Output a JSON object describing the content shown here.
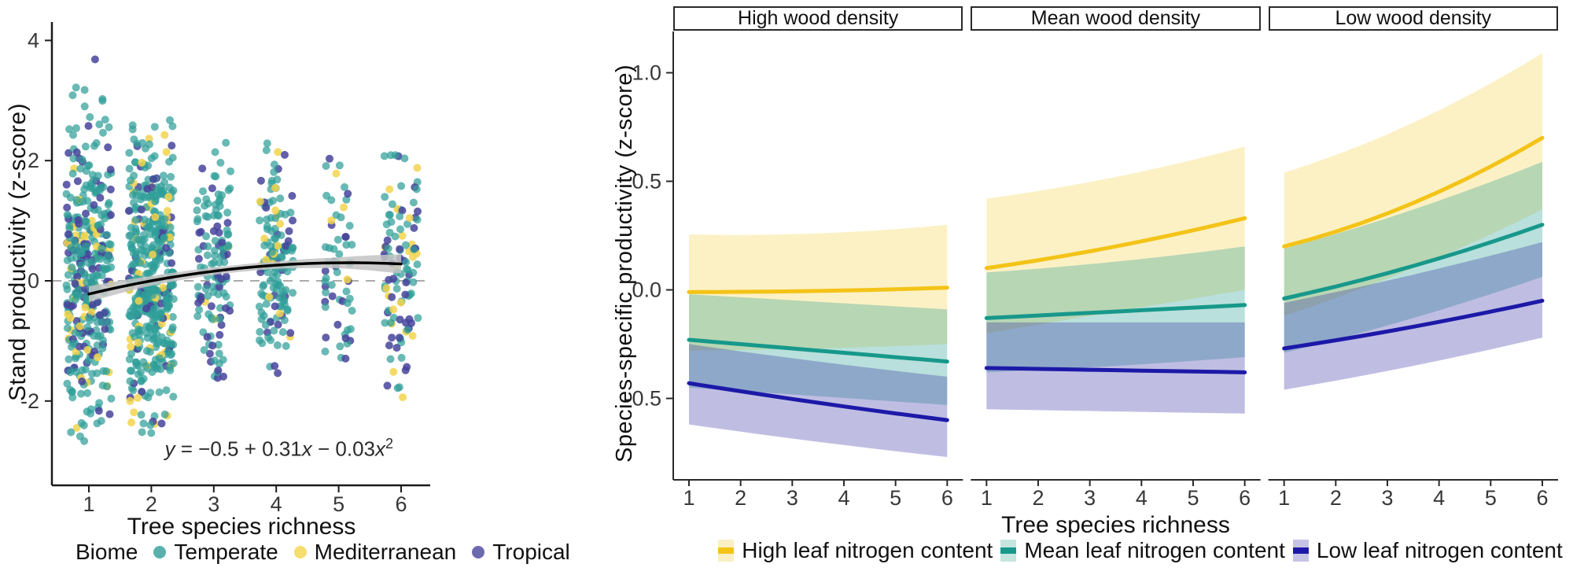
{
  "chart_data": [
    {
      "type": "scatter",
      "panel": "left",
      "xlabel": "Tree species richness",
      "ylabel": "Stand productivity (z-score)",
      "xticks": [
        1,
        2,
        3,
        4,
        5,
        6
      ],
      "ytick_values": [
        -2,
        0,
        2,
        4
      ],
      "ytick_labels": [
        "-2",
        "0",
        "2",
        "4"
      ],
      "xlim": [
        0.55,
        6.45
      ],
      "ylim": [
        -3.4,
        4.35
      ],
      "zero_line": {
        "y": 0,
        "color": "#ababab",
        "style": "dashed"
      },
      "equation": {
        "y": "y",
        "part1": " = −0.5 + 0.31",
        "x1": "x",
        "part2": " − 0.03",
        "x2": "x",
        "exponent": "2"
      },
      "fit_curve": {
        "coefficients": {
          "intercept": -0.5,
          "x": 0.31,
          "x2": -0.03
        },
        "x_range": [
          1,
          6
        ],
        "line_color": "#000000",
        "ci_color": "#c3c3c3",
        "ci_halfwidth_by_x": [
          0.13,
          0.08,
          0.06,
          0.06,
          0.09,
          0.16
        ]
      },
      "legend": {
        "title": "Biome",
        "items": [
          {
            "label": "Temperate",
            "color": "#2f9e98"
          },
          {
            "label": "Mediterranean",
            "color": "#f2d44c"
          },
          {
            "label": "Tropical",
            "color": "#47449b"
          }
        ]
      },
      "point_clusters": [
        {
          "x": 1,
          "n": 380,
          "y_mean": 0.1,
          "y_sd": 1.25,
          "y_min": -2.95,
          "y_max": 3.75,
          "x_jitter": 0.36,
          "biome_share": {
            "Temperate": 0.7,
            "Mediterranean": 0.13,
            "Tropical": 0.17
          }
        },
        {
          "x": 2,
          "n": 470,
          "y_mean": 0.05,
          "y_sd": 1.15,
          "y_min": -2.55,
          "y_max": 2.85,
          "x_jitter": 0.36,
          "biome_share": {
            "Temperate": 0.74,
            "Mediterranean": 0.12,
            "Tropical": 0.14
          }
        },
        {
          "x": 3,
          "n": 130,
          "y_mean": 0.2,
          "y_sd": 1.0,
          "y_min": -1.75,
          "y_max": 2.3,
          "x_jitter": 0.27,
          "biome_share": {
            "Temperate": 0.7,
            "Mediterranean": 0.04,
            "Tropical": 0.26
          }
        },
        {
          "x": 4,
          "n": 150,
          "y_mean": 0.35,
          "y_sd": 0.95,
          "y_min": -1.55,
          "y_max": 2.35,
          "x_jitter": 0.27,
          "biome_share": {
            "Temperate": 0.72,
            "Mediterranean": 0.1,
            "Tropical": 0.18
          }
        },
        {
          "x": 5,
          "n": 60,
          "y_mean": 0.4,
          "y_sd": 1.0,
          "y_min": -1.35,
          "y_max": 2.1,
          "x_jitter": 0.22,
          "biome_share": {
            "Temperate": 0.55,
            "Mediterranean": 0.07,
            "Tropical": 0.38
          }
        },
        {
          "x": 6,
          "n": 110,
          "y_mean": 0.3,
          "y_sd": 1.05,
          "y_min": -1.95,
          "y_max": 2.5,
          "x_jitter": 0.27,
          "biome_share": {
            "Temperate": 0.6,
            "Mediterranean": 0.12,
            "Tropical": 0.28
          }
        }
      ]
    },
    {
      "type": "line",
      "panel": "right",
      "xlabel": "Tree species richness",
      "ylabel": "Species-specific productivity (z-score)",
      "xticks": [
        1,
        2,
        3,
        4,
        5,
        6
      ],
      "ytick_values": [
        1.0,
        0.5,
        0.0,
        -0.5
      ],
      "ytick_labels": [
        "1.0",
        "0.5",
        "0.0",
        "-0.5"
      ],
      "x": [
        1,
        3.5,
        6
      ],
      "facets": [
        {
          "label": "High wood density",
          "series": [
            {
              "name": "High leaf nitrogen content",
              "line": [
                -0.01,
                -0.005,
                0.01
              ],
              "upper": [
                0.255,
                0.26,
                0.3
              ],
              "lower": [
                -0.28,
                -0.27,
                -0.25
              ]
            },
            {
              "name": "Mean leaf nitrogen content",
              "line": [
                -0.23,
                -0.28,
                -0.33
              ],
              "upper": [
                -0.02,
                -0.055,
                -0.09
              ],
              "lower": [
                -0.45,
                -0.49,
                -0.53
              ]
            },
            {
              "name": "Low leaf nitrogen content",
              "line": [
                -0.43,
                -0.52,
                -0.6
              ],
              "upper": [
                -0.25,
                -0.33,
                -0.4
              ],
              "lower": [
                -0.62,
                -0.7,
                -0.77
              ]
            }
          ]
        },
        {
          "label": "Mean wood density",
          "series": [
            {
              "name": "High leaf nitrogen content",
              "line": [
                0.1,
                0.2,
                0.33
              ],
              "upper": [
                0.42,
                0.52,
                0.66
              ],
              "lower": [
                -0.2,
                -0.1,
                0.0
              ]
            },
            {
              "name": "Mean leaf nitrogen content",
              "line": [
                -0.13,
                -0.1,
                -0.07
              ],
              "upper": [
                0.08,
                0.13,
                0.2
              ],
              "lower": [
                -0.38,
                -0.35,
                -0.31
              ]
            },
            {
              "name": "Low leaf nitrogen content",
              "line": [
                -0.36,
                -0.37,
                -0.38
              ],
              "upper": [
                -0.15,
                -0.15,
                -0.15
              ],
              "lower": [
                -0.55,
                -0.56,
                -0.57
              ]
            }
          ]
        },
        {
          "label": "Low wood density",
          "series": [
            {
              "name": "High leaf nitrogen content",
              "line": [
                0.2,
                0.4,
                0.7
              ],
              "upper": [
                0.54,
                0.77,
                1.09
              ],
              "lower": [
                -0.12,
                0.1,
                0.37
              ]
            },
            {
              "name": "Mean leaf nitrogen content",
              "line": [
                -0.04,
                0.11,
                0.3
              ],
              "upper": [
                0.19,
                0.37,
                0.59
              ],
              "lower": [
                -0.29,
                -0.13,
                0.06
              ]
            },
            {
              "name": "Low leaf nitrogen content",
              "line": [
                -0.27,
                -0.17,
                -0.05
              ],
              "upper": [
                -0.06,
                0.07,
                0.22
              ],
              "lower": [
                -0.46,
                -0.35,
                -0.22
              ]
            }
          ]
        }
      ],
      "series_styles": [
        {
          "name": "High leaf nitrogen content",
          "line_color": "#f3c317",
          "ribbon_color": "#f7d44a",
          "ribbon_opacity": 0.32,
          "swatch_bg": "#faf0c4"
        },
        {
          "name": "Mean leaf nitrogen content",
          "line_color": "#17988b",
          "ribbon_color": "#18998c",
          "ribbon_opacity": 0.3,
          "swatch_bg": "#c5e5df"
        },
        {
          "name": "Low leaf nitrogen content",
          "line_color": "#1c19a8",
          "ribbon_color": "#2b28a0",
          "ribbon_opacity": 0.3,
          "swatch_bg": "#c6c4e4"
        }
      ]
    }
  ]
}
